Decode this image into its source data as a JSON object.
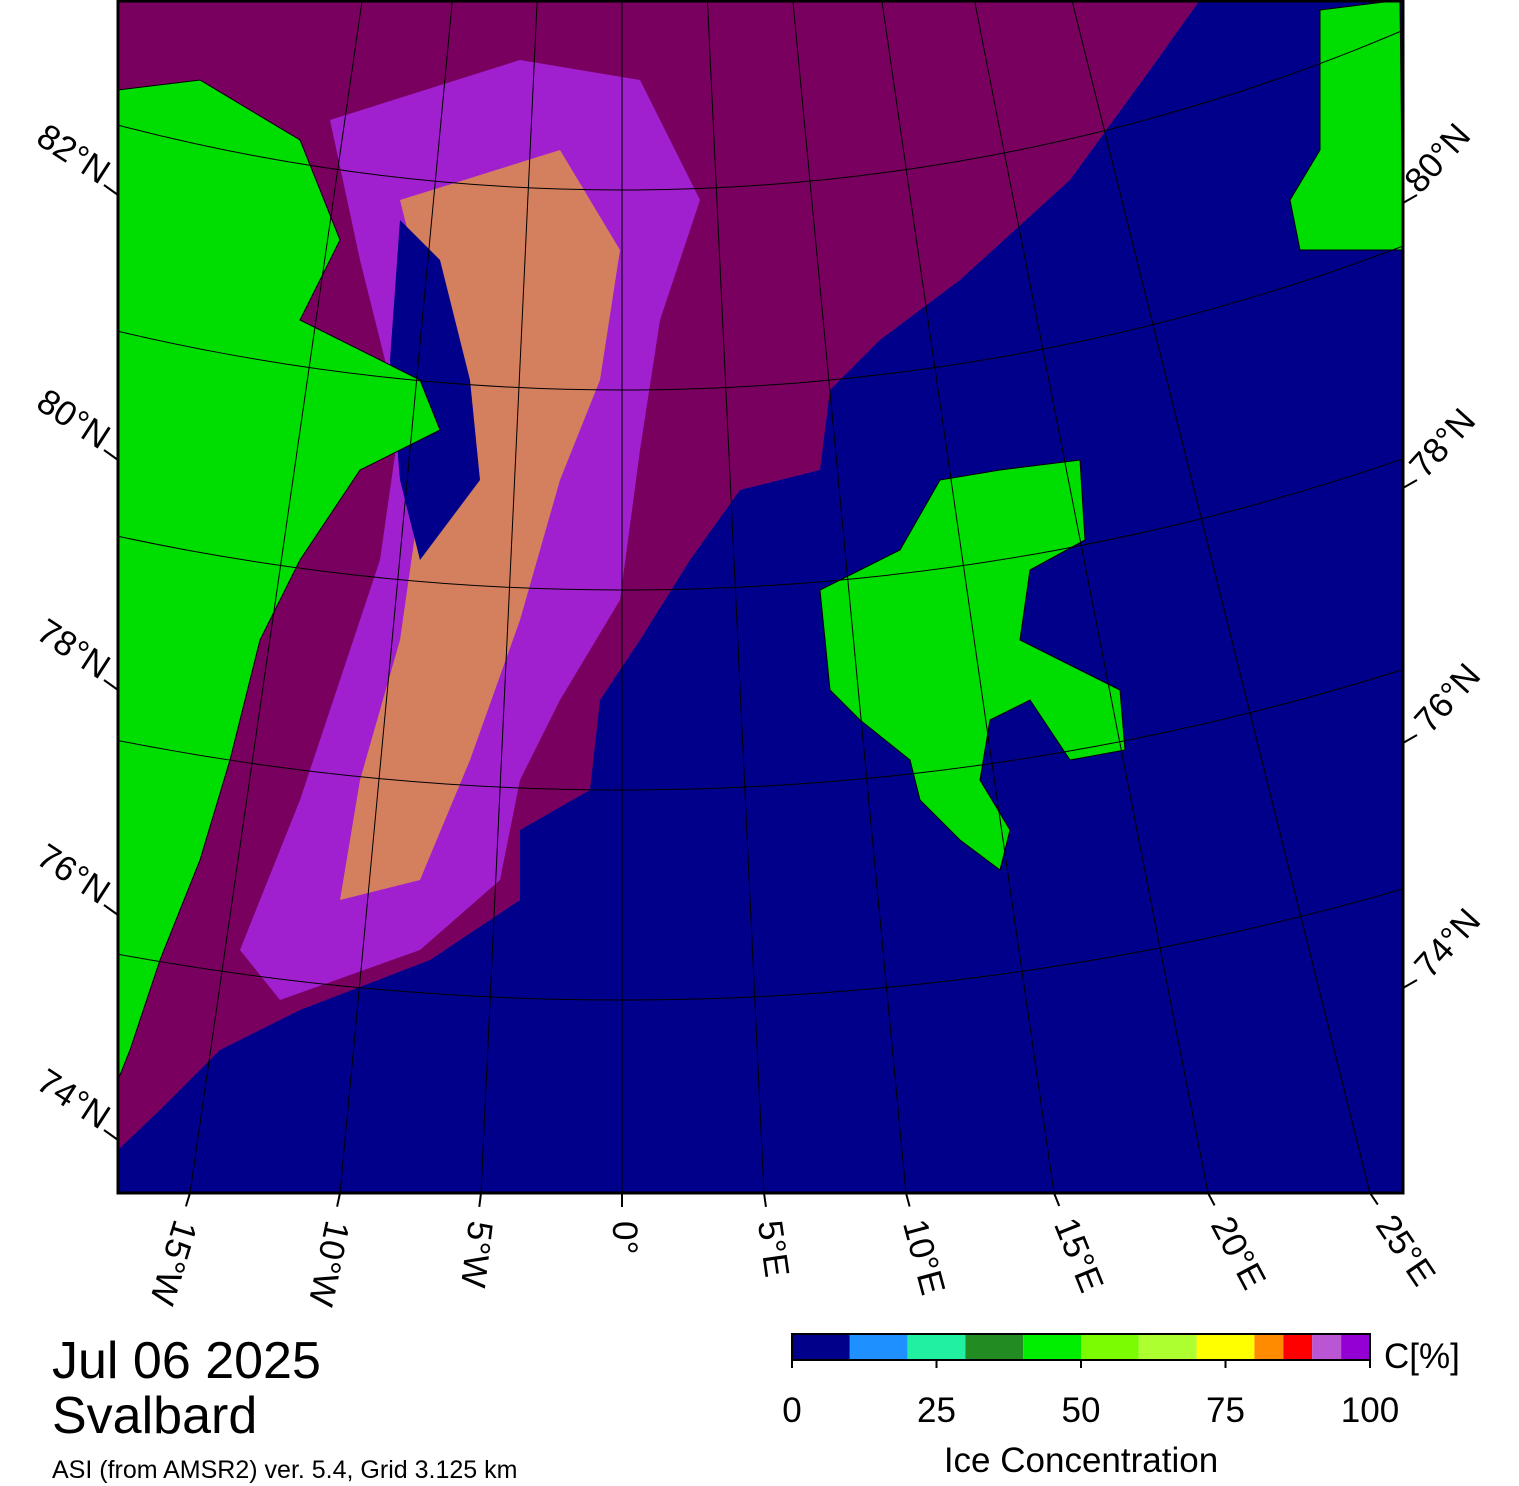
{
  "map": {
    "lat_labels_left": [
      "82°N",
      "80°N",
      "78°N",
      "76°N",
      "74°N"
    ],
    "lat_labels_right": [
      "80°N",
      "78°N",
      "76°N",
      "74°N"
    ],
    "lon_labels": [
      "15°W",
      "10°W",
      "5°W",
      "0°",
      "5°E",
      "10°E",
      "15°E",
      "20°E",
      "25°E"
    ]
  },
  "info": {
    "date": "Jul 06 2025",
    "region": "Svalbard",
    "source": "ASI (from AMSR2) ver. 5.4,  Grid 3.125 km"
  },
  "colorbar": {
    "bounds": [
      0,
      10,
      20,
      30,
      40,
      50,
      60,
      70,
      80,
      85,
      90,
      95,
      100
    ],
    "colors": [
      "#00008b",
      "#1e90ff",
      "#20f0a0",
      "#228b22",
      "#00ee00",
      "#7cfc00",
      "#adff2f",
      "#ffff00",
      "#ff8c00",
      "#ff0000",
      "#ba55d3",
      "#9400d3"
    ],
    "ticks": [
      0,
      25,
      50,
      75,
      100
    ],
    "unit_label": "C[%]",
    "title": "Ice Concentration"
  }
}
